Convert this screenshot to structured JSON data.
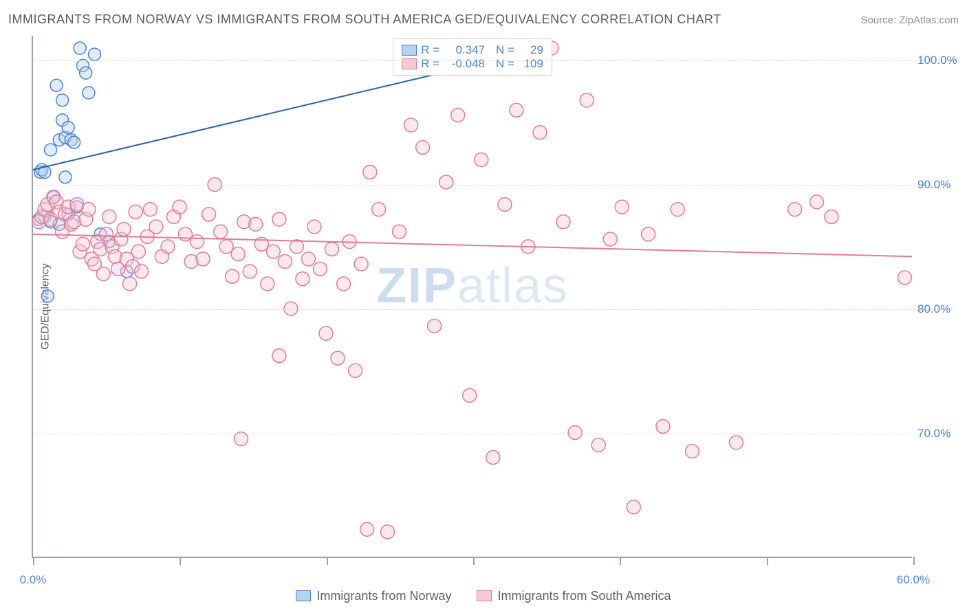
{
  "title": "IMMIGRANTS FROM NORWAY VS IMMIGRANTS FROM SOUTH AMERICA GED/EQUIVALENCY CORRELATION CHART",
  "source_label": "Source: ZipAtlas.com",
  "watermark_prefix": "ZIP",
  "watermark_suffix": "atlas",
  "ylabel": "GED/Equivalency",
  "chart": {
    "type": "scatter",
    "background_color": "#ffffff",
    "grid_color": "#d8dcdf",
    "axis_color": "#9aa1a8",
    "xlim": [
      0,
      60
    ],
    "ylim": [
      60,
      102
    ],
    "xticks": [
      0,
      10,
      20,
      30,
      40,
      50,
      60
    ],
    "xticks_labeled": {
      "0": "0.0%",
      "60": "60.0%"
    },
    "yticks": [
      70,
      80,
      90,
      100
    ],
    "ytick_labels": [
      "70.0%",
      "80.0%",
      "90.0%",
      "100.0%"
    ],
    "label_color": "#4a84d6",
    "label_fontsize": 17
  },
  "series": [
    {
      "name": "Immigrants from Norway",
      "color_fill": "#b8d3ef",
      "color_stroke": "#4a84d6",
      "marker_radius": 9,
      "fill_opacity": 0.45,
      "r_value": "0.347",
      "n_value": "29",
      "trend": {
        "x1": 0,
        "y1": 91.2,
        "x2": 35,
        "y2": 101.0,
        "color": "#2a62b8",
        "width": 2
      },
      "points": [
        [
          0.5,
          91.0
        ],
        [
          0.6,
          91.2
        ],
        [
          0.8,
          91.0
        ],
        [
          1.2,
          92.8
        ],
        [
          1.4,
          89.0
        ],
        [
          1.8,
          93.6
        ],
        [
          2.0,
          95.2
        ],
        [
          2.2,
          93.8
        ],
        [
          2.4,
          94.6
        ],
        [
          2.6,
          93.6
        ],
        [
          2.8,
          93.4
        ],
        [
          3.2,
          101.0
        ],
        [
          3.4,
          99.6
        ],
        [
          3.6,
          99.0
        ],
        [
          3.8,
          97.4
        ],
        [
          2.0,
          96.8
        ],
        [
          1.6,
          98.0
        ],
        [
          4.2,
          100.5
        ],
        [
          0.4,
          87.2
        ],
        [
          0.8,
          87.4
        ],
        [
          1.2,
          87.0
        ],
        [
          1.8,
          86.8
        ],
        [
          2.4,
          87.6
        ],
        [
          3.0,
          88.2
        ],
        [
          4.6,
          86.0
        ],
        [
          5.2,
          85.4
        ],
        [
          6.4,
          83.0
        ],
        [
          1.0,
          81.0
        ],
        [
          2.2,
          90.6
        ]
      ]
    },
    {
      "name": "Immigrants from South America",
      "color_fill": "#f7c9d3",
      "color_stroke": "#e37a98",
      "marker_radius": 10,
      "fill_opacity": 0.4,
      "r_value": "-0.048",
      "n_value": "109",
      "trend": {
        "x1": 0,
        "y1": 86.0,
        "x2": 60,
        "y2": 84.2,
        "color": "#e37a98",
        "width": 2
      },
      "points": [
        [
          0.4,
          87.0
        ],
        [
          0.6,
          87.4
        ],
        [
          0.8,
          88.0
        ],
        [
          1.0,
          88.4
        ],
        [
          1.2,
          87.2
        ],
        [
          1.4,
          89.0
        ],
        [
          1.6,
          88.6
        ],
        [
          1.8,
          87.8
        ],
        [
          2.0,
          86.2
        ],
        [
          2.2,
          87.6
        ],
        [
          2.4,
          88.2
        ],
        [
          2.6,
          86.8
        ],
        [
          2.8,
          87.0
        ],
        [
          3.0,
          88.4
        ],
        [
          3.2,
          84.6
        ],
        [
          3.4,
          85.2
        ],
        [
          3.6,
          87.2
        ],
        [
          3.8,
          88.0
        ],
        [
          4.0,
          84.0
        ],
        [
          4.2,
          83.6
        ],
        [
          4.4,
          85.4
        ],
        [
          4.6,
          84.8
        ],
        [
          4.8,
          82.8
        ],
        [
          5.0,
          86.0
        ],
        [
          5.2,
          87.4
        ],
        [
          5.4,
          85.0
        ],
        [
          5.6,
          84.2
        ],
        [
          5.8,
          83.2
        ],
        [
          6.0,
          85.6
        ],
        [
          6.2,
          86.4
        ],
        [
          6.4,
          84.0
        ],
        [
          6.6,
          82.0
        ],
        [
          6.8,
          83.4
        ],
        [
          7.0,
          87.8
        ],
        [
          7.2,
          84.6
        ],
        [
          7.4,
          83.0
        ],
        [
          7.8,
          85.8
        ],
        [
          8.0,
          88.0
        ],
        [
          8.4,
          86.6
        ],
        [
          8.8,
          84.2
        ],
        [
          9.2,
          85.0
        ],
        [
          9.6,
          87.4
        ],
        [
          10.0,
          88.2
        ],
        [
          10.4,
          86.0
        ],
        [
          10.8,
          83.8
        ],
        [
          11.2,
          85.4
        ],
        [
          11.6,
          84.0
        ],
        [
          12.0,
          87.6
        ],
        [
          12.4,
          90.0
        ],
        [
          12.8,
          86.2
        ],
        [
          13.2,
          85.0
        ],
        [
          13.6,
          82.6
        ],
        [
          14.0,
          84.4
        ],
        [
          14.4,
          87.0
        ],
        [
          14.8,
          83.0
        ],
        [
          15.2,
          86.8
        ],
        [
          15.6,
          85.2
        ],
        [
          16.0,
          82.0
        ],
        [
          16.4,
          84.6
        ],
        [
          16.8,
          87.2
        ],
        [
          17.2,
          83.8
        ],
        [
          17.6,
          80.0
        ],
        [
          18.0,
          85.0
        ],
        [
          18.4,
          82.4
        ],
        [
          18.8,
          84.0
        ],
        [
          19.2,
          86.6
        ],
        [
          19.6,
          83.2
        ],
        [
          20.0,
          78.0
        ],
        [
          20.4,
          84.8
        ],
        [
          20.8,
          76.0
        ],
        [
          21.2,
          82.0
        ],
        [
          21.6,
          85.4
        ],
        [
          22.0,
          75.0
        ],
        [
          22.4,
          83.6
        ],
        [
          23.0,
          91.0
        ],
        [
          23.6,
          88.0
        ],
        [
          24.2,
          62.0
        ],
        [
          25.0,
          86.2
        ],
        [
          25.8,
          94.8
        ],
        [
          26.6,
          93.0
        ],
        [
          27.4,
          78.6
        ],
        [
          28.2,
          90.2
        ],
        [
          29.0,
          95.6
        ],
        [
          29.8,
          73.0
        ],
        [
          30.6,
          92.0
        ],
        [
          31.4,
          68.0
        ],
        [
          32.2,
          88.4
        ],
        [
          33.0,
          96.0
        ],
        [
          33.8,
          85.0
        ],
        [
          34.6,
          94.2
        ],
        [
          35.4,
          101.0
        ],
        [
          36.2,
          87.0
        ],
        [
          37.0,
          70.0
        ],
        [
          37.8,
          96.8
        ],
        [
          38.6,
          69.0
        ],
        [
          39.4,
          85.6
        ],
        [
          40.2,
          88.2
        ],
        [
          41.0,
          64.0
        ],
        [
          42.0,
          86.0
        ],
        [
          43.0,
          70.5
        ],
        [
          44.0,
          88.0
        ],
        [
          45.0,
          68.5
        ],
        [
          48.0,
          69.2
        ],
        [
          52.0,
          88.0
        ],
        [
          53.5,
          88.6
        ],
        [
          54.5,
          87.4
        ],
        [
          59.5,
          82.5
        ],
        [
          14.2,
          69.5
        ],
        [
          22.8,
          62.2
        ],
        [
          16.8,
          76.2
        ]
      ]
    }
  ],
  "legend_stats": {
    "r_label": "R =",
    "n_label": "N ="
  },
  "legend_bottom": [
    {
      "label": "Immigrants from Norway",
      "fill": "#b8d3ef",
      "stroke": "#4a84d6"
    },
    {
      "label": "Immigrants from South America",
      "fill": "#f7c9d3",
      "stroke": "#e37a98"
    }
  ]
}
